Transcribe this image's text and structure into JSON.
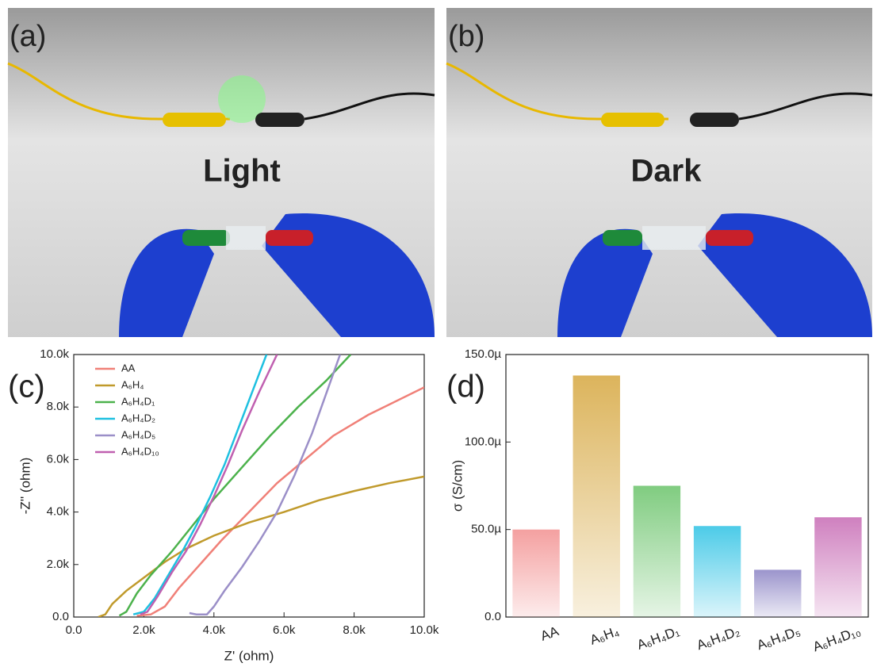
{
  "photos": [
    {
      "label": "(a)",
      "caption": "Light"
    },
    {
      "label": "(b)",
      "caption": "Dark"
    }
  ],
  "chart_data": [
    {
      "type": "line",
      "panel_label": "(c)",
      "x_label": "Z' (ohm)",
      "y_label": "-Z'' (ohm)",
      "xlim": [
        0,
        10000
      ],
      "ylim": [
        0,
        10000
      ],
      "xticks": [
        {
          "value": 0,
          "label": "0.0"
        },
        {
          "value": 2000,
          "label": "2.0k"
        },
        {
          "value": 4000,
          "label": "4.0k"
        },
        {
          "value": 6000,
          "label": "6.0k"
        },
        {
          "value": 8000,
          "label": "8.0k"
        },
        {
          "value": 10000,
          "label": "10.0k"
        }
      ],
      "yticks": [
        {
          "value": 0,
          "label": "0.0"
        },
        {
          "value": 2000,
          "label": "2.0k"
        },
        {
          "value": 4000,
          "label": "4.0k"
        },
        {
          "value": 6000,
          "label": "6.0k"
        },
        {
          "value": 8000,
          "label": "8.0k"
        },
        {
          "value": 10000,
          "label": "10.0k"
        }
      ],
      "series": [
        {
          "name": "AA",
          "color": "#f08078",
          "x": [
            1800,
            2200,
            2600,
            3000,
            3600,
            4200,
            5000,
            5800,
            6600,
            7400,
            8400,
            10000
          ],
          "values": [
            50,
            100,
            400,
            1100,
            2000,
            2900,
            4000,
            5100,
            6000,
            6900,
            7700,
            8750
          ]
        },
        {
          "name": "A₆H₄",
          "color": "#c09a2c",
          "x": [
            700,
            900,
            1100,
            1500,
            2000,
            2600,
            3200,
            4000,
            5000,
            6000,
            7000,
            8000,
            9000,
            10000
          ],
          "values": [
            0,
            100,
            500,
            1000,
            1500,
            2100,
            2600,
            3100,
            3600,
            4000,
            4450,
            4800,
            5100,
            5350
          ]
        },
        {
          "name": "A₆H₄D₁",
          "color": "#4cb24c",
          "x": [
            1300,
            1500,
            1800,
            2200,
            2800,
            3400,
            4000,
            4800,
            5600,
            6400,
            7200,
            7900
          ],
          "values": [
            50,
            200,
            900,
            1600,
            2500,
            3500,
            4500,
            5700,
            6900,
            8000,
            9000,
            10000
          ]
        },
        {
          "name": "A₆H₄D₂",
          "color": "#1ec0e0",
          "x": [
            1700,
            2000,
            2300,
            2700,
            3100,
            3500,
            3900,
            4300,
            4700,
            5100,
            5500
          ],
          "values": [
            100,
            200,
            700,
            1600,
            2500,
            3500,
            4600,
            5800,
            7200,
            8600,
            10000
          ]
        },
        {
          "name": "A₆H₄D₅",
          "color": "#9b8fc8",
          "x": [
            3300,
            3500,
            3800,
            4000,
            4300,
            4800,
            5300,
            5800,
            6300,
            6800,
            7200,
            7600
          ],
          "values": [
            150,
            100,
            100,
            400,
            1000,
            1900,
            2900,
            4000,
            5400,
            7000,
            8500,
            10000
          ]
        },
        {
          "name": "A₆H₄D₁₀",
          "color": "#c060b0",
          "x": [
            1900,
            2100,
            2400,
            2800,
            3200,
            3600,
            4000,
            4400,
            4800,
            5300,
            5800
          ],
          "values": [
            100,
            200,
            800,
            1700,
            2500,
            3500,
            4600,
            5800,
            7100,
            8600,
            10000
          ]
        }
      ]
    },
    {
      "type": "bar",
      "panel_label": "(d)",
      "y_label": "σ (S/cm)",
      "categories": [
        "AA",
        "A₆H₄",
        "A₆H₄D₁",
        "A₆H₄D₂",
        "A₆H₄D₅",
        "A₆H₄D₁₀"
      ],
      "values": [
        5e-05,
        0.000138,
        7.5e-05,
        5.2e-05,
        2.7e-05,
        5.7e-05
      ],
      "colors": [
        "#f4a0a0",
        "#dcb45c",
        "#80cc80",
        "#4ccbe8",
        "#9b94cc",
        "#cf80bf"
      ],
      "ylim": [
        0,
        0.00015
      ],
      "yticks": [
        {
          "value": 0,
          "label": "0.0"
        },
        {
          "value": 5e-05,
          "label": "50.0µ"
        },
        {
          "value": 0.0001,
          "label": "100.0µ"
        },
        {
          "value": 0.00015,
          "label": "150.0µ"
        }
      ]
    }
  ]
}
